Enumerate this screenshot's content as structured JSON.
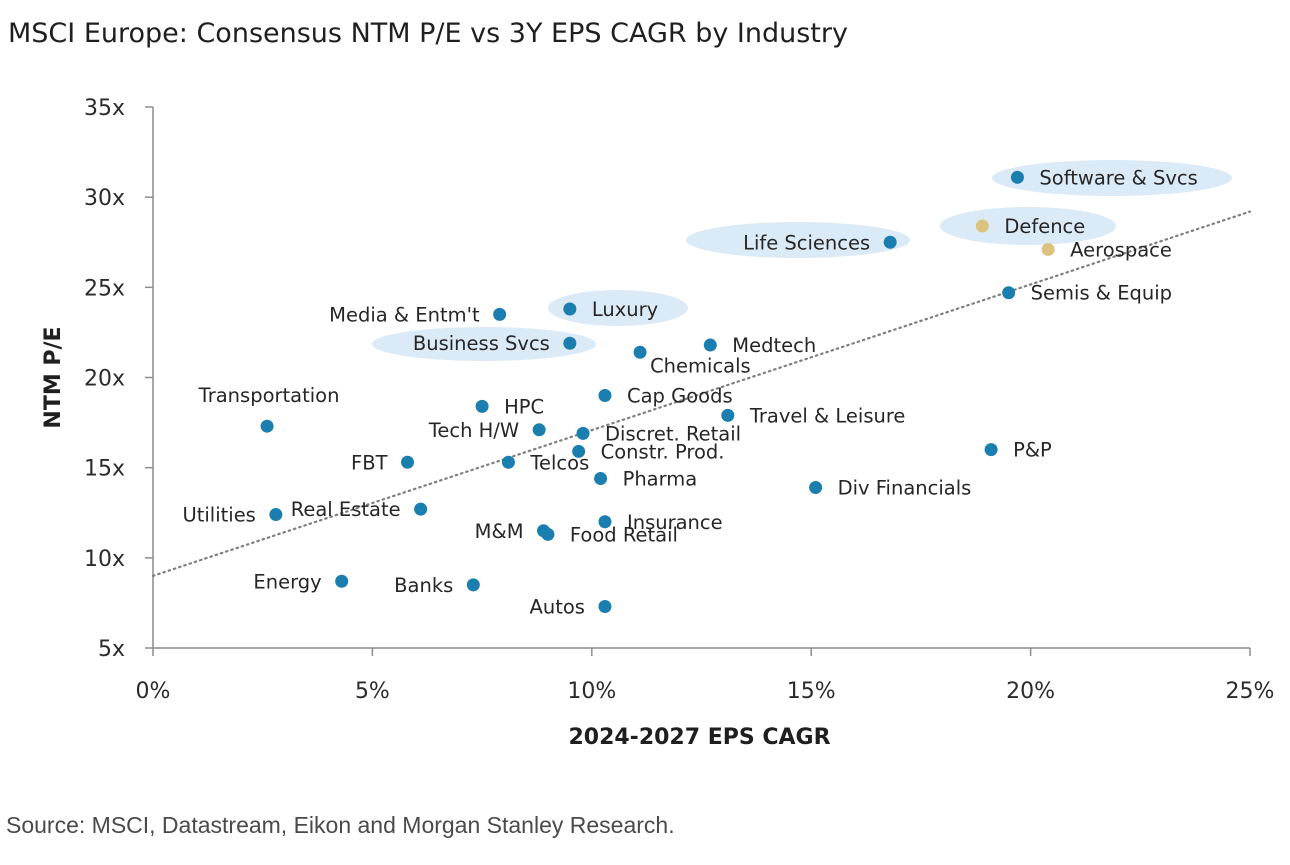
{
  "title": "MSCI Europe: Consensus NTM P/E vs 3Y EPS CAGR by Industry",
  "source": "Source: MSCI, Datastream, Eikon and Morgan Stanley Research.",
  "colors": {
    "point": "#1a7fae",
    "highlight_point": "#dcc27f",
    "highlight_ellipse": "#dbeaf7",
    "trendline": "#7f7f7f",
    "axis": "#8c8c8c"
  },
  "chart_data": {
    "type": "scatter",
    "title": "MSCI Europe: Consensus NTM P/E vs 3Y EPS CAGR by Industry",
    "xlabel": "2024-2027 EPS CAGR",
    "ylabel": "NTM P/E",
    "xlim": [
      0,
      25
    ],
    "ylim": [
      5,
      35
    ],
    "x_ticks": [
      "0%",
      "5%",
      "10%",
      "15%",
      "20%",
      "25%"
    ],
    "y_ticks": [
      "5x",
      "10x",
      "15x",
      "20x",
      "25x",
      "30x",
      "35x"
    ],
    "grid": false,
    "trendline": {
      "x": [
        0,
        25
      ],
      "y": [
        9.0,
        29.2
      ]
    },
    "points": [
      {
        "label": "Software & Svcs",
        "x": 19.7,
        "y": 31.1,
        "highlight": true,
        "label_pos": "right"
      },
      {
        "label": "Defence",
        "x": 18.9,
        "y": 28.4,
        "highlight": true,
        "color": "gold",
        "label_pos": "right"
      },
      {
        "label": "Aerospace",
        "x": 20.4,
        "y": 27.1,
        "color": "gold",
        "label_pos": "right"
      },
      {
        "label": "Life Sciences",
        "x": 16.8,
        "y": 27.5,
        "highlight": true,
        "label_pos": "left"
      },
      {
        "label": "Semis & Equip",
        "x": 19.5,
        "y": 24.7,
        "label_pos": "right"
      },
      {
        "label": "Luxury",
        "x": 9.5,
        "y": 23.8,
        "highlight": true,
        "label_pos": "right"
      },
      {
        "label": "Media & Entm't",
        "x": 7.9,
        "y": 23.5,
        "label_pos": "left"
      },
      {
        "label": "Business Svcs",
        "x": 9.5,
        "y": 21.9,
        "highlight": true,
        "label_pos": "left"
      },
      {
        "label": "Chemicals",
        "x": 11.1,
        "y": 21.4,
        "label_pos": "right-below"
      },
      {
        "label": "Medtech",
        "x": 12.7,
        "y": 21.8,
        "label_pos": "right"
      },
      {
        "label": "Cap Goods",
        "x": 10.3,
        "y": 19.0,
        "label_pos": "right"
      },
      {
        "label": "Transportation",
        "x": 2.6,
        "y": 17.3,
        "label_pos": "above"
      },
      {
        "label": "HPC",
        "x": 7.5,
        "y": 18.4,
        "label_pos": "right"
      },
      {
        "label": "Travel & Leisure",
        "x": 13.1,
        "y": 17.9,
        "label_pos": "right"
      },
      {
        "label": "Tech H/W",
        "x": 8.8,
        "y": 17.1,
        "label_pos": "left"
      },
      {
        "label": "Discret. Retail",
        "x": 9.8,
        "y": 16.9,
        "label_pos": "right"
      },
      {
        "label": "Constr. Prod.",
        "x": 9.7,
        "y": 15.9,
        "label_pos": "right"
      },
      {
        "label": "P&P",
        "x": 19.1,
        "y": 16.0,
        "label_pos": "right"
      },
      {
        "label": "FBT",
        "x": 5.8,
        "y": 15.3,
        "label_pos": "left"
      },
      {
        "label": "Telcos",
        "x": 8.1,
        "y": 15.3,
        "label_pos": "right"
      },
      {
        "label": "Pharma",
        "x": 10.2,
        "y": 14.4,
        "label_pos": "right"
      },
      {
        "label": "Div Financials",
        "x": 15.1,
        "y": 13.9,
        "label_pos": "right"
      },
      {
        "label": "Real Estate",
        "x": 6.1,
        "y": 12.7,
        "label_pos": "left"
      },
      {
        "label": "Utilities",
        "x": 2.8,
        "y": 12.4,
        "label_pos": "left"
      },
      {
        "label": "Insurance",
        "x": 10.3,
        "y": 12.0,
        "label_pos": "right"
      },
      {
        "label": "M&M",
        "x": 8.9,
        "y": 11.5,
        "label_pos": "left"
      },
      {
        "label": "Food Retail",
        "x": 9.0,
        "y": 11.3,
        "label_pos": "right"
      },
      {
        "label": "Energy",
        "x": 4.3,
        "y": 8.7,
        "label_pos": "left"
      },
      {
        "label": "Banks",
        "x": 7.3,
        "y": 8.5,
        "label_pos": "left"
      },
      {
        "label": "Autos",
        "x": 10.3,
        "y": 7.3,
        "label_pos": "left"
      }
    ]
  }
}
